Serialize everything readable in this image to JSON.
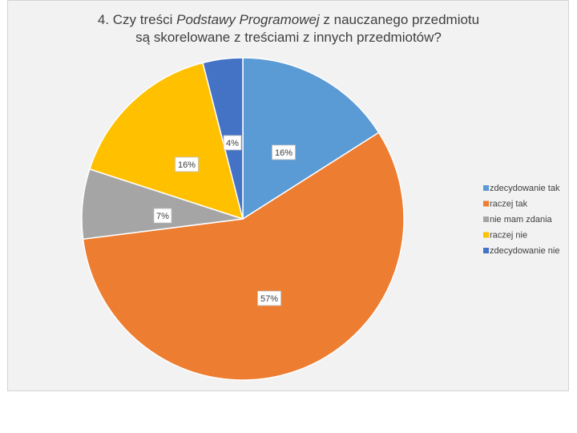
{
  "chart_data": {
    "type": "pie",
    "title_part1": "4. Czy treści ",
    "title_italic": "Podstawy Programowej",
    "title_part2": " z nauczanego przedmiotu",
    "title_line2": "są skorelowane z treściami z innych przedmiotów?",
    "categories": [
      "zdecydowanie tak",
      "raczej tak",
      "nie mam zdania",
      "raczej nie",
      "zdecydowanie nie"
    ],
    "values": [
      16,
      57,
      7,
      16,
      4
    ],
    "labels": [
      "16%",
      "57%",
      "7%",
      "16%",
      "4%"
    ],
    "colors": [
      "#5b9bd5",
      "#ed7d31",
      "#a5a5a5",
      "#ffc000",
      "#4472c4"
    ],
    "legend_position": "right"
  }
}
